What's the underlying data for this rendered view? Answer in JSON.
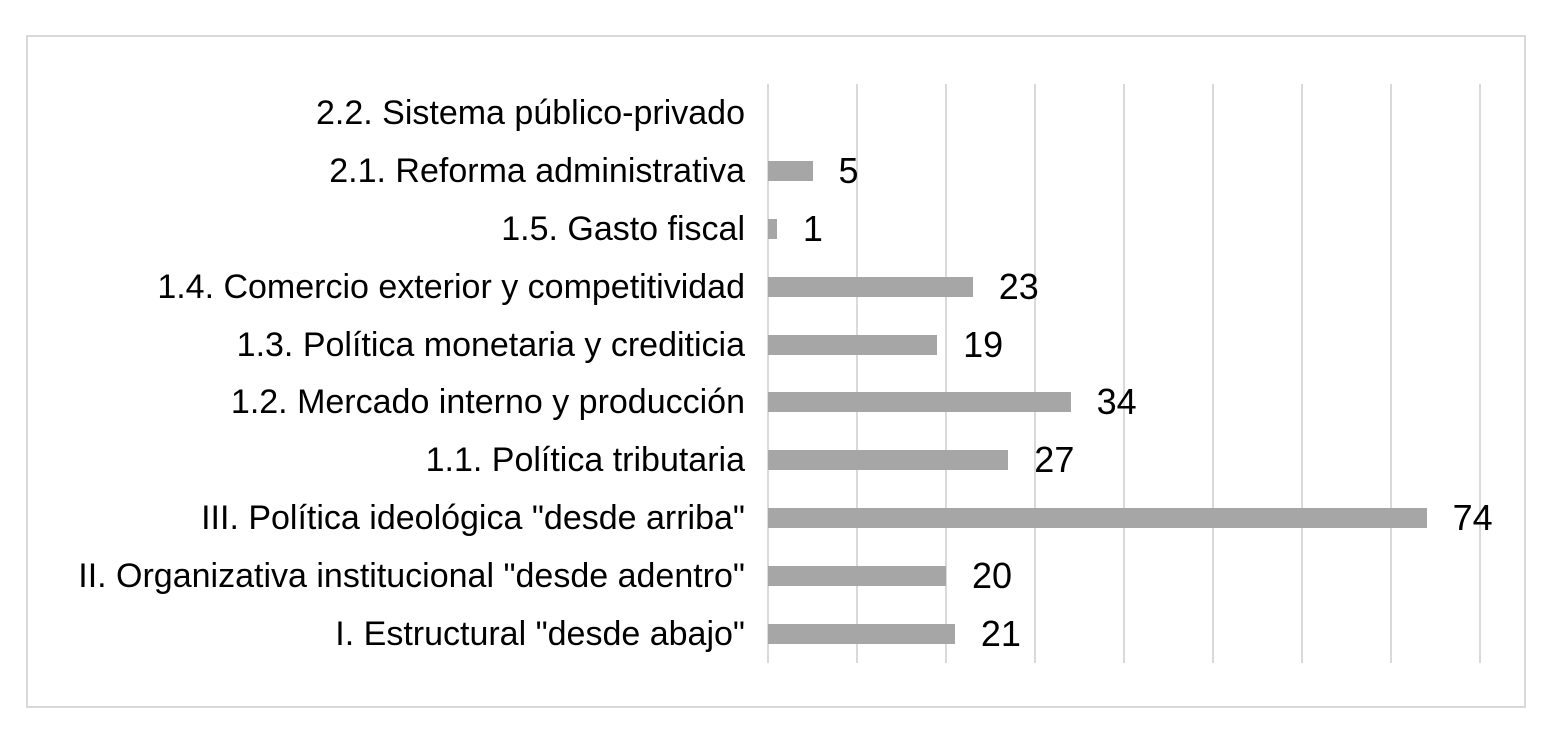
{
  "chart_data": {
    "type": "bar",
    "orientation": "horizontal",
    "title": "",
    "xlabel": "",
    "ylabel": "",
    "categories": [
      "2.2. Sistema público-privado",
      "2.1. Reforma administrativa",
      "1.5. Gasto fiscal",
      "1.4. Comercio exterior y competitividad",
      "1.3. Política monetaria y crediticia",
      "1.2. Mercado interno y producción",
      "1.1. Política tributaria",
      "III. Política ideológica \"desde arriba\"",
      "II. Organizativa institucional \"desde adentro\"",
      "I. Estructural \"desde abajo\""
    ],
    "values": [
      0,
      5,
      1,
      23,
      19,
      34,
      27,
      74,
      20,
      21
    ],
    "data_labels": [
      "",
      "5",
      "1",
      "23",
      "19",
      "34",
      "27",
      "74",
      "20",
      "21"
    ],
    "xlim": [
      0,
      80
    ],
    "gridline_interval": 10,
    "grid": true,
    "legend": false,
    "axis_tick_labels_visible": false,
    "colors": {
      "bar": "#a6a6a6",
      "gridline": "#d9d9d9",
      "frame_border": "#d9d9d9",
      "text": "#000000",
      "background": "#ffffff"
    }
  }
}
